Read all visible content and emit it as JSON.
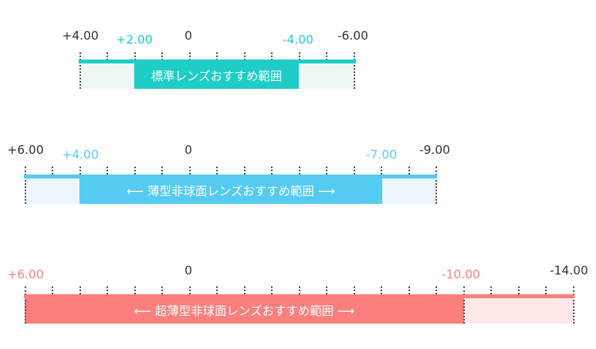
{
  "colors": {
    "standard_accent": "#1ecdc6",
    "standard_light": "#eef9f6",
    "thin_accent": "#55cbf2",
    "thin_light": "#eef6fd",
    "ultra_accent": "#fb7f7d",
    "ultra_light": "#fde8e8",
    "label_dark": "#333333"
  },
  "scales": [
    {
      "id": "standard",
      "min_label": "+4.00",
      "rec_min_label": "+2.00",
      "zero_label": "0",
      "rec_max_label": "-4.00",
      "max_label": "-6.00",
      "range_label": "標準レンズおすすめ範囲",
      "min_value": 4,
      "rec_min_value": 2,
      "rec_max_value": -4,
      "max_value": -6
    },
    {
      "id": "thin",
      "min_label": "+6.00",
      "rec_min_label": "+4.00",
      "zero_label": "0",
      "rec_max_label": "-7.00",
      "max_label": "-9.00",
      "range_label": "⟵ 薄型非球面レンズおすすめ範囲 ⟶",
      "min_value": 6,
      "rec_min_value": 4,
      "rec_max_value": -7,
      "max_value": -9
    },
    {
      "id": "ultra-thin",
      "min_label": "+6.00",
      "zero_label": "0",
      "rec_max_label": "-10.00",
      "max_label": "-14.00",
      "range_label": "⟵ 超薄型非球面レンズおすすめ範囲 ⟶",
      "min_value": 6,
      "rec_min_value": 6,
      "rec_max_value": -10,
      "max_value": -14
    }
  ]
}
